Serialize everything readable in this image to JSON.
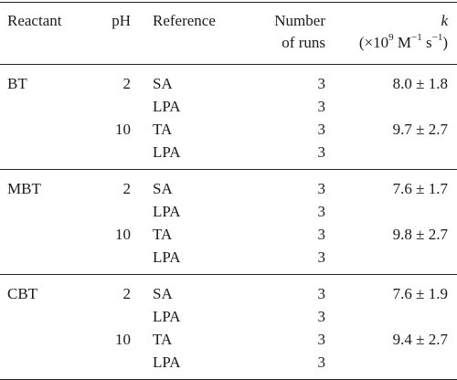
{
  "header": {
    "reactant": "Reactant",
    "ph": "pH",
    "reference": "Reference",
    "runs_line1": "Number",
    "runs_line2": "of runs",
    "k_symbol": "k",
    "k_unit_prefix": "(×10",
    "k_unit_exp1": "9",
    "k_unit_mid": " M",
    "k_unit_exp2": "−1",
    "k_unit_s": " s",
    "k_unit_exp3": "−1",
    "k_unit_suffix": ")"
  },
  "groups": [
    {
      "rows": [
        {
          "reactant": "BT",
          "ph": "2",
          "reference": "SA",
          "runs": "3",
          "k": "8.0 ± 1.8"
        },
        {
          "reactant": "",
          "ph": "",
          "reference": "LPA",
          "runs": "3",
          "k": ""
        },
        {
          "reactant": "",
          "ph": "10",
          "reference": "TA",
          "runs": "3",
          "k": "9.7 ± 2.7"
        },
        {
          "reactant": "",
          "ph": "",
          "reference": "LPA",
          "runs": "3",
          "k": ""
        }
      ]
    },
    {
      "rows": [
        {
          "reactant": "MBT",
          "ph": "2",
          "reference": "SA",
          "runs": "3",
          "k": "7.6 ± 1.7"
        },
        {
          "reactant": "",
          "ph": "",
          "reference": "LPA",
          "runs": "3",
          "k": ""
        },
        {
          "reactant": "",
          "ph": "10",
          "reference": "TA",
          "runs": "3",
          "k": "9.8 ± 2.7"
        },
        {
          "reactant": "",
          "ph": "",
          "reference": "LPA",
          "runs": "3",
          "k": ""
        }
      ]
    },
    {
      "rows": [
        {
          "reactant": "CBT",
          "ph": "2",
          "reference": "SA",
          "runs": "3",
          "k": "7.6 ± 1.9"
        },
        {
          "reactant": "",
          "ph": "",
          "reference": "LPA",
          "runs": "3",
          "k": ""
        },
        {
          "reactant": "",
          "ph": "10",
          "reference": "TA",
          "runs": "3",
          "k": "9.4 ± 2.7"
        },
        {
          "reactant": "",
          "ph": "",
          "reference": "LPA",
          "runs": "3",
          "k": ""
        }
      ]
    }
  ]
}
